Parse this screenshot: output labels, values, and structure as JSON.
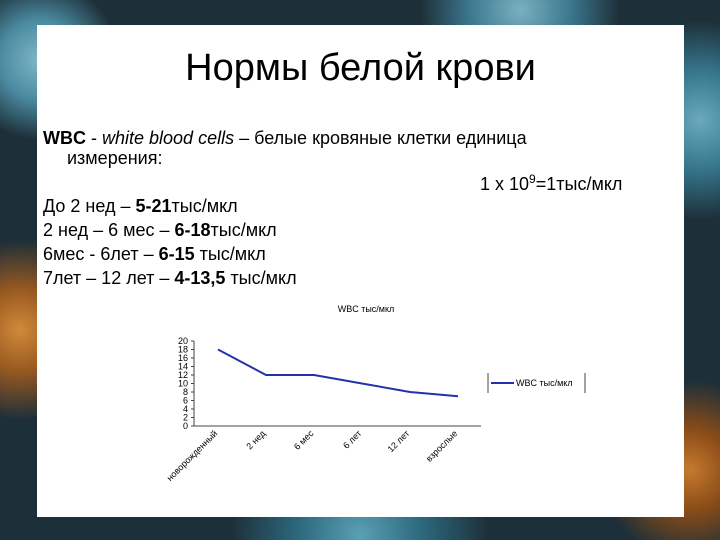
{
  "slide": {
    "title": "Нормы белой крови",
    "intro": {
      "term": "WBC",
      "dash": " - ",
      "english": "white blood cells",
      "rest": " – белые кровяные клетки единица",
      "rest2": "измерения:"
    },
    "unit": {
      "base": "1 x 10",
      "exp": "9",
      "tail": "=1тыс/мкл"
    },
    "norms": [
      {
        "label": "До 2 нед – ",
        "range": "5-21",
        "unit": "тыс/мкл"
      },
      {
        "label": "2 нед – 6 мес – ",
        "range": "6-18",
        "unit": "тыс/мкл"
      },
      {
        "label": "6мес - 6лет – ",
        "range": "6-15",
        "unit": " тыс/мкл"
      },
      {
        "label": "7лет – 12 лет – ",
        "range": "4-13,5",
        "unit": " тыс/мкл"
      }
    ]
  },
  "chart_data": {
    "type": "line",
    "title": "WBC тыс/мкл",
    "categories": [
      "новорожденный",
      "2 нед",
      "6 мес",
      "6 лет",
      "12 лет",
      "взрослые"
    ],
    "series": [
      {
        "name": "WBC тыс/мкл",
        "color": "#2233aa",
        "values": [
          18,
          12,
          12,
          10,
          8,
          7
        ]
      }
    ],
    "ylim": [
      0,
      20
    ],
    "yticks": [
      0,
      2,
      4,
      6,
      8,
      10,
      12,
      14,
      16,
      18,
      20
    ],
    "legend": "right"
  }
}
